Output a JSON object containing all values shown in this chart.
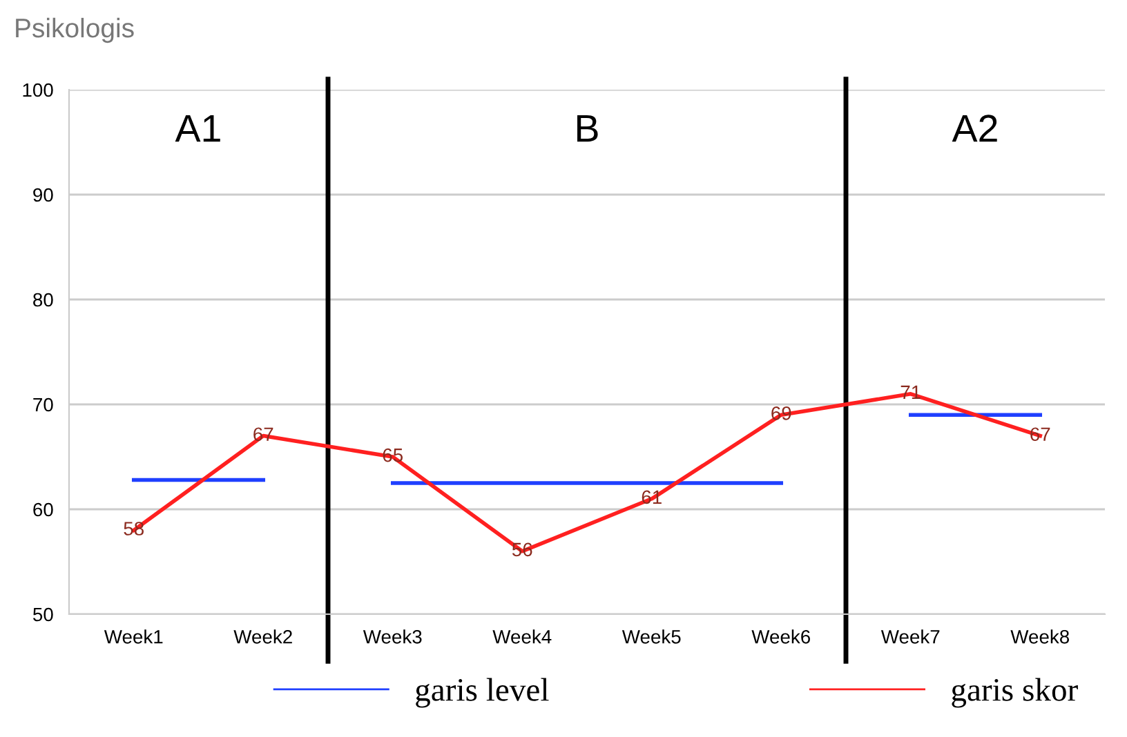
{
  "chart_data": {
    "type": "line",
    "title": "Psikologis",
    "categories": [
      "Week1",
      "Week2",
      "Week3",
      "Week4",
      "Week5",
      "Week6",
      "Week7",
      "Week8"
    ],
    "series": [
      {
        "name": "garis level",
        "color": "#1f3fff",
        "values": [
          62.8,
          62.8,
          null,
          null,
          null,
          null,
          null,
          null
        ]
      },
      {
        "color": "#1f3fff",
        "values": [
          null,
          null,
          62.5,
          62.5,
          62.5,
          62.5,
          null,
          null
        ]
      },
      {
        "color": "#1f3fff",
        "values": [
          null,
          null,
          null,
          null,
          null,
          null,
          69,
          69
        ]
      },
      {
        "name": "garis skor",
        "color": "#ff2020",
        "values": [
          58,
          67,
          65,
          56,
          61,
          69,
          71,
          67
        ],
        "data_labels": true
      }
    ],
    "ylim": [
      50,
      100
    ],
    "yticks": [
      50,
      60,
      70,
      80,
      90,
      100
    ],
    "grid": "y",
    "legend": "bottom",
    "marker": "none",
    "line_style": "solid",
    "annotations": [
      "A1",
      "B",
      "A2"
    ]
  }
}
